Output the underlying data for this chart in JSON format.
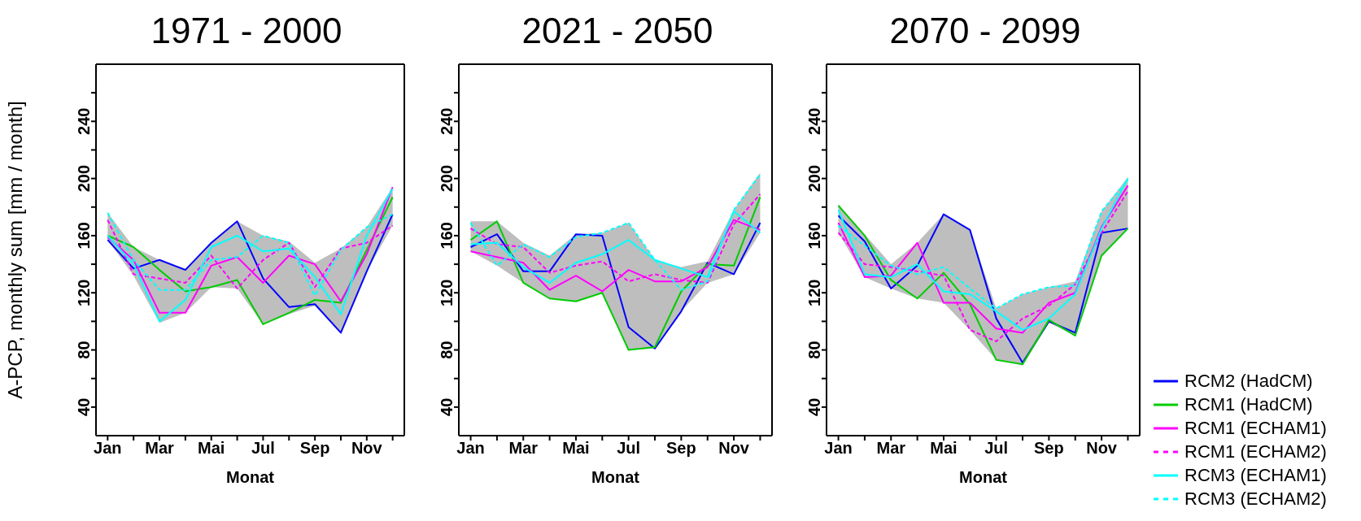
{
  "chart_data": [
    {
      "type": "line",
      "title": "1971 - 2000",
      "xlabel": "Monat",
      "ylabel": "A-PCP, monthly sum [mm / month]",
      "categories": [
        "Jan",
        null,
        "Mar",
        null,
        "Mai",
        null,
        "Jul",
        null,
        "Sep",
        null,
        "Nov",
        null
      ],
      "ylim": [
        20,
        280
      ],
      "yticks": [
        40,
        {
          "value": 60,
          "label": null
        },
        80,
        {
          "value": 100,
          "label": null
        },
        120,
        {
          "value": 140,
          "label": null
        },
        160,
        {
          "value": 180,
          "label": null
        },
        200,
        {
          "value": 220,
          "label": null
        },
        240,
        {
          "value": 260,
          "label": null
        }
      ],
      "marker": "none",
      "series": [
        {
          "type": "area",
          "color": "#bebebe",
          "values": [
            null,
            null,
            null,
            null,
            null,
            null,
            null,
            null,
            null,
            null,
            null,
            null
          ],
          "lower": [
            157,
            132,
            99,
            106,
            124,
            123,
            98,
            105,
            111,
            92,
            135,
            167
          ],
          "upper": [
            176,
            152,
            143,
            137,
            155,
            170,
            160,
            156,
            141,
            151,
            166,
            194
          ]
        },
        {
          "color": "#0000ff",
          "values": [
            157,
            137,
            143,
            136,
            155,
            170,
            130,
            110,
            112,
            92,
            135,
            175
          ]
        },
        {
          "color": "#00cc00",
          "values": [
            160,
            152,
            136,
            121,
            124,
            129,
            98,
            106,
            115,
            113,
            150,
            187
          ]
        },
        {
          "color": "#ff00ff",
          "values": [
            159,
            143,
            106,
            106,
            139,
            145,
            127,
            146,
            140,
            114,
            147,
            194
          ]
        },
        {
          "color": "#ff00ff",
          "line_style": "dashed",
          "values": [
            171,
            133,
            130,
            127,
            146,
            123,
            143,
            155,
            124,
            151,
            155,
            167
          ]
        },
        {
          "color": "#00ffff",
          "values": [
            160,
            140,
            100,
            115,
            152,
            160,
            149,
            151,
            131,
            105,
            160,
            193
          ]
        },
        {
          "color": "#00ffff",
          "line_style": "dashed",
          "values": [
            176,
            143,
            122,
            122,
            143,
            145,
            160,
            155,
            118,
            150,
            166,
            175
          ]
        }
      ]
    },
    {
      "type": "line",
      "title": "2021 - 2050",
      "xlabel": "Monat",
      "categories": [
        "Jan",
        null,
        "Mar",
        null,
        "Mai",
        null,
        "Jul",
        null,
        "Sep",
        null,
        "Nov",
        null
      ],
      "ylim": [
        20,
        280
      ],
      "yticks": [
        40,
        {
          "value": 60,
          "label": null
        },
        80,
        {
          "value": 100,
          "label": null
        },
        120,
        {
          "value": 140,
          "label": null
        },
        160,
        {
          "value": 180,
          "label": null
        },
        200,
        {
          "value": 220,
          "label": null
        },
        240,
        {
          "value": 260,
          "label": null
        }
      ],
      "marker": "none",
      "series": [
        {
          "type": "area",
          "color": "#bebebe",
          "values": [
            null,
            null,
            null,
            null,
            null,
            null,
            null,
            null,
            null,
            null,
            null,
            null
          ],
          "lower": [
            149,
            139,
            127,
            116,
            114,
            120,
            80,
            81,
            107,
            127,
            133,
            162
          ],
          "upper": [
            170,
            170,
            155,
            146,
            161,
            162,
            169,
            143,
            138,
            142,
            178,
            204
          ]
        },
        {
          "color": "#0000ff",
          "values": [
            152,
            161,
            135,
            135,
            161,
            160,
            96,
            81,
            107,
            141,
            133,
            169
          ]
        },
        {
          "color": "#00cc00",
          "values": [
            157,
            170,
            127,
            116,
            114,
            120,
            80,
            82,
            121,
            140,
            139,
            187
          ]
        },
        {
          "color": "#ff00ff",
          "values": [
            149,
            145,
            141,
            122,
            132,
            121,
            136,
            128,
            128,
            138,
            171,
            164
          ]
        },
        {
          "color": "#ff00ff",
          "line_style": "dashed",
          "values": [
            165,
            154,
            152,
            134,
            139,
            142,
            128,
            133,
            129,
            127,
            168,
            189
          ]
        },
        {
          "color": "#00ffff",
          "values": [
            154,
            155,
            138,
            127,
            141,
            147,
            157,
            143,
            137,
            131,
            177,
            162
          ]
        },
        {
          "color": "#00ffff",
          "line_style": "dashed",
          "values": [
            169,
            139,
            154,
            145,
            159,
            162,
            169,
            143,
            122,
            128,
            178,
            203
          ]
        }
      ]
    },
    {
      "type": "line",
      "title": "2070 - 2099",
      "xlabel": "Monat",
      "categories": [
        "Jan",
        null,
        "Mar",
        null,
        "Mai",
        null,
        "Jul",
        null,
        "Sep",
        null,
        "Nov",
        null
      ],
      "ylim": [
        20,
        280
      ],
      "yticks": [
        40,
        {
          "value": 60,
          "label": null
        },
        80,
        {
          "value": 100,
          "label": null
        },
        120,
        {
          "value": 140,
          "label": null
        },
        160,
        {
          "value": 180,
          "label": null
        },
        200,
        {
          "value": 220,
          "label": null
        },
        240,
        {
          "value": 260,
          "label": null
        }
      ],
      "marker": "none",
      "legend": "bottom right",
      "series": [
        {
          "type": "area",
          "color": "#bebebe",
          "values": [
            null,
            null,
            null,
            null,
            null,
            null,
            null,
            null,
            null,
            null,
            null,
            null
          ],
          "lower": [
            162,
            131,
            123,
            116,
            113,
            94,
            73,
            69,
            99,
            90,
            145,
            165
          ],
          "upper": [
            182,
            161,
            140,
            155,
            175,
            164,
            109,
            119,
            124,
            128,
            177,
            201
          ]
        },
        {
          "name": "RCM2 (HadCM)",
          "color": "#0000ff",
          "values": [
            174,
            156,
            123,
            139,
            175,
            164,
            102,
            71,
            100,
            92,
            162,
            165
          ]
        },
        {
          "name": "RCM1 (HadCM)",
          "color": "#00cc00",
          "values": [
            181,
            160,
            129,
            116,
            134,
            112,
            73,
            70,
            101,
            90,
            146,
            165
          ]
        },
        {
          "name": "RCM1 (ECHAM1)",
          "color": "#ff00ff",
          "values": [
            169,
            131,
            132,
            155,
            113,
            113,
            95,
            92,
            113,
            120,
            166,
            195
          ]
        },
        {
          "name": "RCM1 (ECHAM2)",
          "color": "#ff00ff",
          "line_style": "dashed",
          "values": [
            162,
            140,
            138,
            135,
            132,
            94,
            86,
            102,
            111,
            126,
            162,
            191
          ]
        },
        {
          "name": "RCM3 (ECHAM1)",
          "color": "#00ffff",
          "values": [
            178,
            133,
            131,
            140,
            121,
            119,
            107,
            94,
            102,
            119,
            165,
            200
          ]
        },
        {
          "name": "RCM3 (ECHAM2)",
          "color": "#00ffff",
          "line_style": "dashed",
          "values": [
            167,
            153,
            139,
            133,
            138,
            123,
            109,
            119,
            124,
            125,
            177,
            199
          ]
        }
      ]
    }
  ]
}
